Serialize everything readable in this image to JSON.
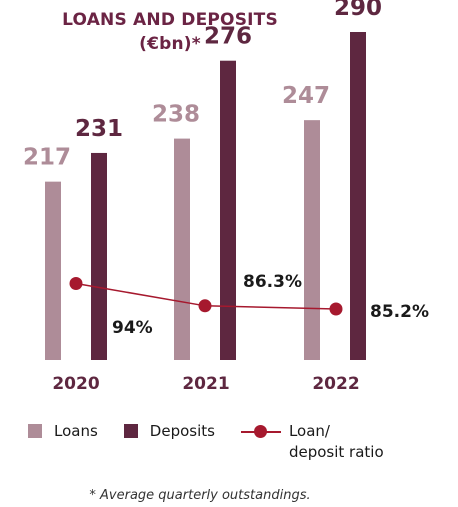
{
  "chart_data": {
    "type": "bar",
    "title": "LOANS AND DEPOSITS",
    "subtitle": "(€bn)*",
    "categories": [
      "2020",
      "2021",
      "2022"
    ],
    "series": [
      {
        "name": "Loans",
        "type": "bar",
        "values": [
          217,
          238,
          247
        ],
        "color": "#ae8c98"
      },
      {
        "name": "Deposits",
        "type": "bar",
        "values": [
          231,
          276,
          290
        ],
        "color": "#5e2740"
      },
      {
        "name": "Loan/ deposit ratio",
        "type": "line",
        "values": [
          94,
          86.3,
          85.2
        ],
        "labels": [
          "94%",
          "86.3%",
          "85.2%"
        ],
        "color": "#a6192e"
      }
    ],
    "footnote": "* Average quarterly outstandings."
  },
  "legend": {
    "loans": "Loans",
    "deposits": "Deposits",
    "ratio_line1": "Loan/",
    "ratio_line2": "deposit ratio"
  },
  "colors": {
    "title": "#6b2444",
    "loans": "#ae8c98",
    "deposits": "#5e2740",
    "ratio": "#a6192e"
  }
}
